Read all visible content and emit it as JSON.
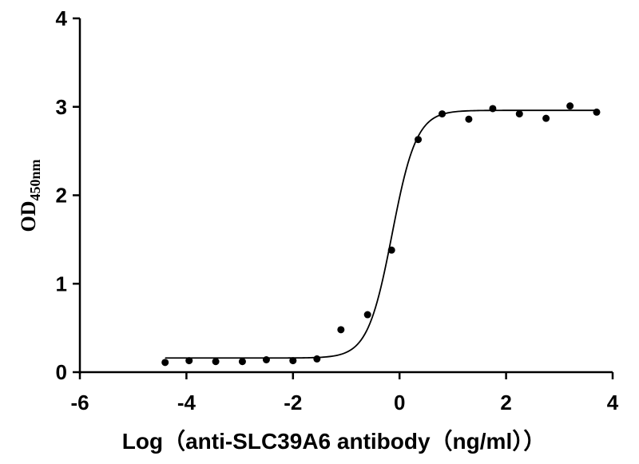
{
  "chart_data": {
    "type": "scatter",
    "xlabel": "Log（anti-SLC39A6 antibody（ng/ml））",
    "ylabel_main": "OD",
    "ylabel_sub": "450nm",
    "xlim": [
      -6,
      4
    ],
    "ylim": [
      0,
      4
    ],
    "x_ticks": [
      "-6",
      "-4",
      "-2",
      "0",
      "2",
      "4"
    ],
    "y_ticks": [
      "0",
      "1",
      "2",
      "3",
      "4"
    ],
    "grid": false,
    "series": [
      {
        "points": [
          {
            "x": -4.4,
            "y": 0.11
          },
          {
            "x": -3.95,
            "y": 0.13
          },
          {
            "x": -3.45,
            "y": 0.12
          },
          {
            "x": -2.95,
            "y": 0.12
          },
          {
            "x": -2.5,
            "y": 0.14
          },
          {
            "x": -2.0,
            "y": 0.13
          },
          {
            "x": -1.55,
            "y": 0.15
          },
          {
            "x": -1.1,
            "y": 0.48
          },
          {
            "x": -0.6,
            "y": 0.65
          },
          {
            "x": -0.15,
            "y": 1.38
          },
          {
            "x": 0.35,
            "y": 2.63
          },
          {
            "x": 0.8,
            "y": 2.92
          },
          {
            "x": 1.3,
            "y": 2.86
          },
          {
            "x": 1.75,
            "y": 2.98
          },
          {
            "x": 2.25,
            "y": 2.92
          },
          {
            "x": 2.75,
            "y": 2.87
          },
          {
            "x": 3.2,
            "y": 3.01
          },
          {
            "x": 3.7,
            "y": 2.94
          }
        ]
      }
    ],
    "fit_curve": {
      "model": "four-parameter logistic",
      "bottom": 0.16,
      "top": 2.96,
      "log_ec50": -0.14,
      "hill_slope": 1.9,
      "x_range": [
        -4.4,
        3.7
      ]
    }
  }
}
